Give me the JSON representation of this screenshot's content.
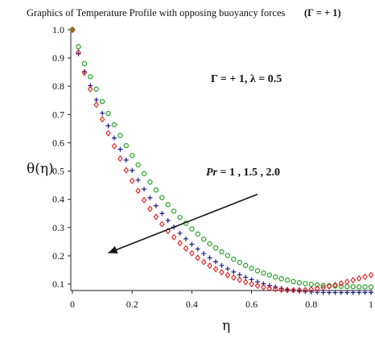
{
  "chart_data": {
    "type": "scatter",
    "title": "Graphics of Temperature Profile with opposing buoyancy forces",
    "title_suffix": "(Γ = + 1)",
    "xlabel": "η",
    "ylabel": "θ(η)",
    "xlim": [
      0,
      1
    ],
    "ylim": [
      0.07,
      1.0
    ],
    "x_ticks": [
      "0",
      "0.2",
      "0.4",
      "0.6",
      "0.8",
      "1"
    ],
    "y_ticks": [
      "0.1",
      "0.2",
      "0.3",
      "0.4",
      "0.5",
      "0.6",
      "0.7",
      "0.8",
      "0.9",
      "1.0"
    ],
    "grid": false,
    "annotations": {
      "params": "Γ = + 1, λ = 0.5",
      "pr_italic": "Pr",
      "pr_values": " = 1 , 1.5 , 2.0"
    },
    "arrow": {
      "from": [
        0.62,
        0.418
      ],
      "to": [
        0.12,
        0.21
      ]
    },
    "series": [
      {
        "color": "#22a022",
        "marker": "circle",
        "x": [
          0,
          0.02,
          0.04,
          0.06,
          0.08,
          0.1,
          0.12,
          0.14,
          0.16,
          0.18,
          0.2,
          0.22,
          0.24,
          0.26,
          0.28,
          0.3,
          0.32,
          0.34,
          0.36,
          0.38,
          0.4,
          0.42,
          0.44,
          0.46,
          0.48,
          0.5,
          0.52,
          0.54,
          0.56,
          0.58,
          0.6,
          0.62,
          0.64,
          0.66,
          0.68,
          0.7,
          0.72,
          0.74,
          0.76,
          0.78,
          0.8,
          0.82,
          0.84,
          0.86,
          0.88,
          0.9,
          0.92,
          0.94,
          0.96,
          0.98,
          1.0
        ],
        "y": [
          1.0,
          0.94,
          0.88,
          0.834,
          0.79,
          0.746,
          0.704,
          0.664,
          0.626,
          0.59,
          0.555,
          0.522,
          0.491,
          0.461,
          0.433,
          0.406,
          0.381,
          0.358,
          0.336,
          0.315,
          0.295,
          0.277,
          0.259,
          0.243,
          0.228,
          0.214,
          0.201,
          0.188,
          0.177,
          0.166,
          0.156,
          0.147,
          0.139,
          0.132,
          0.125,
          0.119,
          0.114,
          0.109,
          0.105,
          0.102,
          0.099,
          0.097,
          0.095,
          0.094,
          0.093,
          0.092,
          0.091,
          0.091,
          0.09,
          0.09,
          0.09
        ]
      },
      {
        "color": "#1a1a8c",
        "marker": "plus",
        "x": [
          0,
          0.02,
          0.04,
          0.06,
          0.08,
          0.1,
          0.12,
          0.14,
          0.16,
          0.18,
          0.2,
          0.22,
          0.24,
          0.26,
          0.28,
          0.3,
          0.32,
          0.34,
          0.36,
          0.38,
          0.4,
          0.42,
          0.44,
          0.46,
          0.48,
          0.5,
          0.52,
          0.54,
          0.56,
          0.58,
          0.6,
          0.62,
          0.64,
          0.66,
          0.68,
          0.7,
          0.72,
          0.74,
          0.76,
          0.78,
          0.8,
          0.82,
          0.84,
          0.86,
          0.88,
          0.9,
          0.92,
          0.94,
          0.96,
          0.98,
          1.0
        ],
        "y": [
          1.0,
          0.915,
          0.852,
          0.802,
          0.752,
          0.705,
          0.66,
          0.617,
          0.577,
          0.539,
          0.502,
          0.468,
          0.436,
          0.405,
          0.377,
          0.35,
          0.325,
          0.302,
          0.28,
          0.26,
          0.241,
          0.224,
          0.208,
          0.193,
          0.179,
          0.166,
          0.154,
          0.143,
          0.133,
          0.124,
          0.116,
          0.108,
          0.101,
          0.095,
          0.09,
          0.085,
          0.081,
          0.078,
          0.075,
          0.073,
          0.072,
          0.071,
          0.07,
          0.07,
          0.07,
          0.07,
          0.07,
          0.07,
          0.07,
          0.07,
          0.07
        ]
      },
      {
        "color": "#dd1e1e",
        "marker": "diamond",
        "x": [
          0,
          0.02,
          0.04,
          0.06,
          0.08,
          0.1,
          0.12,
          0.14,
          0.16,
          0.18,
          0.2,
          0.22,
          0.24,
          0.26,
          0.28,
          0.3,
          0.32,
          0.34,
          0.36,
          0.38,
          0.4,
          0.42,
          0.44,
          0.46,
          0.48,
          0.5,
          0.52,
          0.54,
          0.56,
          0.58,
          0.6,
          0.62,
          0.64,
          0.66,
          0.68,
          0.7,
          0.72,
          0.74,
          0.76,
          0.78,
          0.8,
          0.82,
          0.84,
          0.86,
          0.88,
          0.9,
          0.92,
          0.94,
          0.96,
          0.98,
          1.0
        ],
        "y": [
          1.0,
          0.92,
          0.848,
          0.79,
          0.735,
          0.683,
          0.634,
          0.588,
          0.544,
          0.503,
          0.465,
          0.43,
          0.397,
          0.366,
          0.338,
          0.312,
          0.288,
          0.266,
          0.245,
          0.226,
          0.209,
          0.193,
          0.178,
          0.165,
          0.153,
          0.142,
          0.132,
          0.123,
          0.115,
          0.107,
          0.1,
          0.094,
          0.089,
          0.085,
          0.082,
          0.08,
          0.079,
          0.078,
          0.078,
          0.079,
          0.081,
          0.084,
          0.088,
          0.092,
          0.097,
          0.102,
          0.108,
          0.114,
          0.12,
          0.126,
          0.132
        ]
      }
    ]
  }
}
